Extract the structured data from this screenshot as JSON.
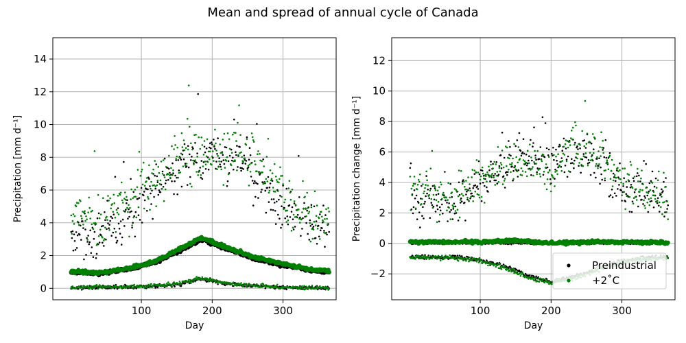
{
  "figure": {
    "title": "Mean and spread of annual cycle of Canada"
  },
  "colors": {
    "preindustrial": "#000000",
    "warm": "#008000",
    "grid": "#b0b0b0",
    "zero_line": "#888888"
  },
  "chart_data": [
    {
      "type": "scatter",
      "name": "left-panel",
      "title": "",
      "xlabel": "Day",
      "ylabel": "Precipitation [mm d⁻¹]",
      "xlim": [
        -25,
        375
      ],
      "ylim": [
        -0.7,
        15.3
      ],
      "xticks": [
        100,
        200,
        300
      ],
      "yticks": [
        0,
        2,
        4,
        6,
        8,
        10,
        12,
        14
      ],
      "grid": true,
      "zero_line": false,
      "series": [
        {
          "name": "Preindustrial mean",
          "color_key": "preindustrial",
          "size": "large",
          "curve": [
            [
              1,
              1.0
            ],
            [
              40,
              0.9
            ],
            [
              80,
              1.15
            ],
            [
              120,
              1.6
            ],
            [
              150,
              2.2
            ],
            [
              185,
              3.0
            ],
            [
              220,
              2.4
            ],
            [
              260,
              1.8
            ],
            [
              300,
              1.4
            ],
            [
              340,
              1.1
            ],
            [
              365,
              1.0
            ]
          ],
          "noise": 0.06,
          "step": 1,
          "seed": 11
        },
        {
          "name": "+2°C mean",
          "color_key": "warm",
          "size": "large",
          "curve": [
            [
              1,
              1.05
            ],
            [
              40,
              0.95
            ],
            [
              80,
              1.2
            ],
            [
              120,
              1.65
            ],
            [
              150,
              2.3
            ],
            [
              185,
              3.1
            ],
            [
              220,
              2.5
            ],
            [
              260,
              1.9
            ],
            [
              300,
              1.5
            ],
            [
              340,
              1.15
            ],
            [
              365,
              1.05
            ]
          ],
          "noise": 0.06,
          "step": 1,
          "seed": 12
        },
        {
          "name": "Preindustrial spread",
          "color_key": "preindustrial",
          "size": "small",
          "curve": [
            [
              1,
              0.05
            ],
            [
              100,
              0.1
            ],
            [
              150,
              0.2
            ],
            [
              185,
              0.6
            ],
            [
              220,
              0.25
            ],
            [
              300,
              0.05
            ],
            [
              365,
              0.02
            ]
          ],
          "noise": 0.08,
          "step": 1,
          "seed": 13
        },
        {
          "name": "+2°C spread",
          "color_key": "warm",
          "size": "small",
          "curve": [
            [
              1,
              0.05
            ],
            [
              100,
              0.12
            ],
            [
              150,
              0.25
            ],
            [
              185,
              0.65
            ],
            [
              220,
              0.3
            ],
            [
              300,
              0.06
            ],
            [
              365,
              0.02
            ]
          ],
          "noise": 0.08,
          "step": 1,
          "seed": 14
        },
        {
          "name": "Preindustrial extreme",
          "color_key": "preindustrial",
          "size": "small",
          "curve": [
            [
              1,
              3.4
            ],
            [
              40,
              3.3
            ],
            [
              80,
              4.5
            ],
            [
              120,
              6.2
            ],
            [
              160,
              7.7
            ],
            [
              200,
              7.9
            ],
            [
              240,
              7.8
            ],
            [
              280,
              6.0
            ],
            [
              310,
              4.5
            ],
            [
              340,
              4.0
            ],
            [
              365,
              3.6
            ]
          ],
          "noise": 1.1,
          "step": 1,
          "seed": 15
        },
        {
          "name": "+2°C extreme",
          "color_key": "warm",
          "size": "small",
          "curve": [
            [
              1,
              4.6
            ],
            [
              40,
              4.0
            ],
            [
              80,
              5.0
            ],
            [
              120,
              6.8
            ],
            [
              160,
              8.2
            ],
            [
              200,
              8.0
            ],
            [
              240,
              8.6
            ],
            [
              280,
              6.8
            ],
            [
              310,
              4.9
            ],
            [
              340,
              4.4
            ],
            [
              365,
              4.1
            ]
          ],
          "noise": 1.1,
          "step": 1,
          "seed": 16
        }
      ]
    },
    {
      "type": "scatter",
      "name": "right-panel",
      "title": "",
      "xlabel": "Day",
      "ylabel": "Precipitation change [mm d⁻¹]",
      "xlim": [
        -25,
        375
      ],
      "ylim": [
        -3.7,
        13.5
      ],
      "xticks": [
        100,
        200,
        300
      ],
      "yticks": [
        -2,
        0,
        2,
        4,
        6,
        8,
        10,
        12
      ],
      "grid": true,
      "zero_line": true,
      "legend": {
        "placement": "lower-right",
        "entries": [
          {
            "label": "Preindustrial",
            "color_key": "preindustrial"
          },
          {
            "label": "+2˚C",
            "color_key": "warm"
          }
        ]
      },
      "series": [
        {
          "name": "Preindustrial zero",
          "color_key": "preindustrial",
          "size": "small",
          "curve": [
            [
              1,
              0.0
            ],
            [
              365,
              0.0
            ]
          ],
          "noise": 0.04,
          "step": 1,
          "seed": 21
        },
        {
          "name": "+2°C change mean",
          "color_key": "warm",
          "size": "large",
          "curve": [
            [
              1,
              0.1
            ],
            [
              100,
              0.1
            ],
            [
              150,
              0.2
            ],
            [
              200,
              0.0
            ],
            [
              260,
              0.1
            ],
            [
              365,
              0.05
            ]
          ],
          "noise": 0.07,
          "step": 1,
          "seed": 22
        },
        {
          "name": "Preindustrial spread change",
          "color_key": "preindustrial",
          "size": "small",
          "curve": [
            [
              1,
              -0.9
            ],
            [
              60,
              -0.9
            ],
            [
              100,
              -1.1
            ],
            [
              140,
              -1.6
            ],
            [
              165,
              -2.1
            ],
            [
              200,
              -2.5
            ],
            [
              240,
              -2.1
            ],
            [
              280,
              -1.4
            ],
            [
              320,
              -1.0
            ],
            [
              365,
              -0.9
            ]
          ],
          "noise": 0.1,
          "step": 1,
          "seed": 23
        },
        {
          "name": "+2°C spread change",
          "color_key": "warm",
          "size": "small",
          "curve": [
            [
              1,
              -0.9
            ],
            [
              60,
              -0.9
            ],
            [
              100,
              -1.15
            ],
            [
              140,
              -1.7
            ],
            [
              165,
              -2.2
            ],
            [
              200,
              -2.6
            ],
            [
              240,
              -2.2
            ],
            [
              280,
              -1.5
            ],
            [
              320,
              -1.05
            ],
            [
              365,
              -0.95
            ]
          ],
          "noise": 0.12,
          "step": 1,
          "seed": 24
        },
        {
          "name": "Preindustrial extreme change",
          "color_key": "preindustrial",
          "size": "small",
          "curve": [
            [
              1,
              2.8
            ],
            [
              60,
              2.6
            ],
            [
              100,
              3.8
            ],
            [
              130,
              4.9
            ],
            [
              160,
              5.6
            ],
            [
              200,
              5.4
            ],
            [
              240,
              6.2
            ],
            [
              270,
              5.2
            ],
            [
              300,
              3.6
            ],
            [
              340,
              3.2
            ],
            [
              365,
              2.9
            ]
          ],
          "noise": 0.95,
          "step": 1,
          "seed": 25
        },
        {
          "name": "+2°C extreme change",
          "color_key": "warm",
          "size": "small",
          "curve": [
            [
              1,
              3.4
            ],
            [
              60,
              2.9
            ],
            [
              100,
              4.0
            ],
            [
              130,
              5.1
            ],
            [
              160,
              5.4
            ],
            [
              200,
              4.5
            ],
            [
              240,
              6.6
            ],
            [
              270,
              5.6
            ],
            [
              300,
              3.9
            ],
            [
              340,
              3.3
            ],
            [
              365,
              3.0
            ]
          ],
          "noise": 1.0,
          "step": 1,
          "seed": 26
        }
      ]
    }
  ]
}
